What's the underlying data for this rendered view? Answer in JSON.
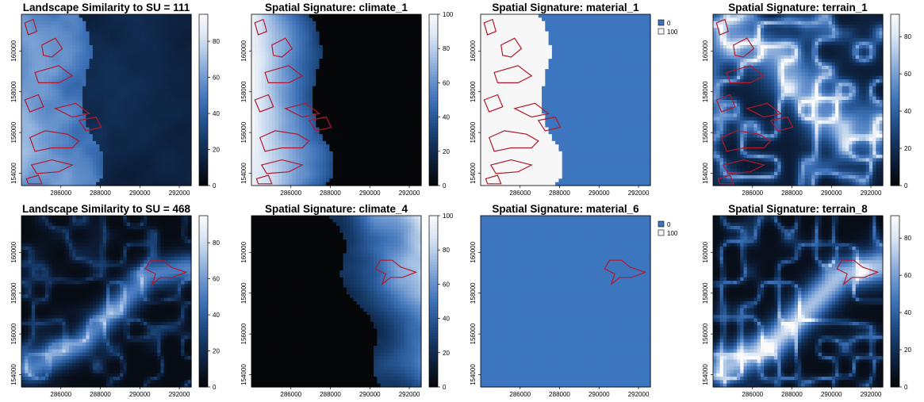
{
  "chart_data": [
    {
      "type": "heatmap",
      "title": "Landscape Similarity to SU = 111",
      "scale": "continuous",
      "pattern": "similarity",
      "colorbar_ticks": [
        "0",
        "20",
        "40",
        "60",
        "80"
      ],
      "colorbar_range": [
        0,
        95
      ],
      "xticks": [
        "286000",
        "288000",
        "290000",
        "292000"
      ],
      "yticks": [
        "154000",
        "156000",
        "158000",
        "160000"
      ],
      "xlim": [
        284000,
        292600
      ],
      "ylim": [
        153400,
        161800
      ],
      "outline": "su111",
      "outline_color": "#b2182b"
    },
    {
      "type": "heatmap",
      "title": "Spatial Signature: climate_1",
      "scale": "continuous",
      "pattern": "climate1",
      "colorbar_ticks": [
        "0",
        "20",
        "40",
        "60",
        "80",
        "100"
      ],
      "colorbar_range": [
        0,
        100
      ],
      "xticks": [
        "286000",
        "288000",
        "290000",
        "292000"
      ],
      "yticks": [
        "154000",
        "156000",
        "158000",
        "160000"
      ],
      "xlim": [
        284000,
        292600
      ],
      "ylim": [
        153400,
        161800
      ],
      "outline": "su111",
      "outline_color": "#b2182b"
    },
    {
      "type": "heatmap",
      "title": "Spatial Signature: material_1",
      "scale": "categorical",
      "pattern": "material1",
      "legend": [
        {
          "label": "0",
          "color": "#3d76bf"
        },
        {
          "label": "100",
          "color": "#f7f7f7"
        }
      ],
      "xticks": [
        "286000",
        "288000",
        "290000",
        "292000"
      ],
      "yticks": [
        "154000",
        "156000",
        "158000",
        "160000"
      ],
      "xlim": [
        284000,
        292600
      ],
      "ylim": [
        153400,
        161800
      ],
      "outline": "su111",
      "outline_color": "#b2182b"
    },
    {
      "type": "heatmap",
      "title": "Spatial Signature: terrain_1",
      "scale": "continuous",
      "pattern": "terrain1",
      "colorbar_ticks": [
        "0",
        "20",
        "40",
        "60",
        "80"
      ],
      "colorbar_range": [
        0,
        92
      ],
      "xticks": [
        "286000",
        "288000",
        "290000",
        "292000"
      ],
      "yticks": [
        "154000",
        "156000",
        "158000",
        "160000"
      ],
      "xlim": [
        284000,
        292600
      ],
      "ylim": [
        153400,
        161800
      ],
      "outline": "su111",
      "outline_color": "#b2182b"
    },
    {
      "type": "heatmap",
      "title": "Landscape Similarity to SU = 468",
      "scale": "continuous",
      "pattern": "similarity468",
      "colorbar_ticks": [
        "0",
        "20",
        "40",
        "60",
        "80"
      ],
      "colorbar_range": [
        0,
        95
      ],
      "xticks": [
        "286000",
        "288000",
        "290000",
        "292000"
      ],
      "yticks": [
        "154000",
        "156000",
        "158000",
        "160000"
      ],
      "xlim": [
        284000,
        292600
      ],
      "ylim": [
        153400,
        161800
      ],
      "outline": "su468",
      "outline_color": "#b2182b"
    },
    {
      "type": "heatmap",
      "title": "Spatial Signature: climate_4",
      "scale": "continuous",
      "pattern": "climate4",
      "colorbar_ticks": [
        "0",
        "20",
        "40",
        "60",
        "80",
        "100"
      ],
      "colorbar_range": [
        0,
        100
      ],
      "xticks": [
        "286000",
        "288000",
        "290000",
        "292000"
      ],
      "yticks": [
        "154000",
        "156000",
        "158000",
        "160000"
      ],
      "xlim": [
        284000,
        292600
      ],
      "ylim": [
        153400,
        161800
      ],
      "outline": "su468",
      "outline_color": "#b2182b"
    },
    {
      "type": "heatmap",
      "title": "Spatial Signature: material_6",
      "scale": "categorical",
      "pattern": "material6",
      "legend": [
        {
          "label": "0",
          "color": "#3d76bf"
        },
        {
          "label": "100",
          "color": "#f7f7f7"
        }
      ],
      "xticks": [
        "286000",
        "288000",
        "290000",
        "292000"
      ],
      "yticks": [
        "154000",
        "156000",
        "158000",
        "160000"
      ],
      "xlim": [
        284000,
        292600
      ],
      "ylim": [
        153400,
        161800
      ],
      "outline": "su468",
      "outline_color": "#b2182b"
    },
    {
      "type": "heatmap",
      "title": "Spatial Signature: terrain_8",
      "scale": "continuous",
      "pattern": "terrain8",
      "colorbar_ticks": [
        "0",
        "20",
        "40",
        "60",
        "80"
      ],
      "colorbar_range": [
        0,
        92
      ],
      "xticks": [
        "286000",
        "288000",
        "290000",
        "292000"
      ],
      "yticks": [
        "154000",
        "156000",
        "158000",
        "160000"
      ],
      "xlim": [
        284000,
        292600
      ],
      "ylim": [
        153400,
        161800
      ],
      "outline": "su468",
      "outline_color": "#b2182b"
    }
  ],
  "colormap": [
    "#050505",
    "#0c1b34",
    "#13345e",
    "#24528e",
    "#3e72b8",
    "#6d97cf",
    "#a5c0e3",
    "#dbe6f4",
    "#fbfbfb"
  ]
}
